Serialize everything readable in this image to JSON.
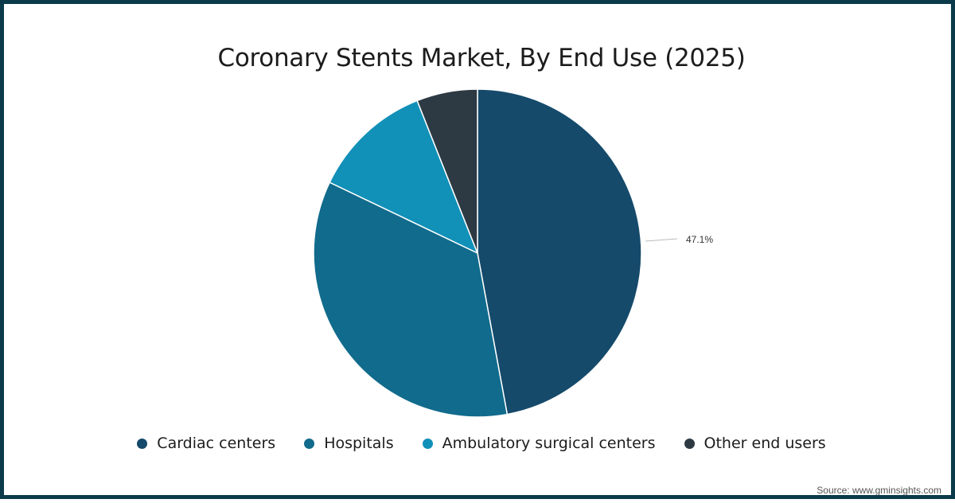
{
  "chart_data": {
    "type": "pie",
    "title": "Coronary Stents Market, By End Use (2025)",
    "categories": [
      "Cardiac centers",
      "Hospitals",
      "Ambulatory surgical centers",
      "Other end users"
    ],
    "values": [
      47.1,
      35.0,
      11.9,
      6.0
    ],
    "colors": [
      "#154a6b",
      "#116b8c",
      "#1190b8",
      "#2d3a44"
    ],
    "data_labels": [
      {
        "category": "Cardiac centers",
        "text": "47.1%"
      }
    ],
    "legend_position": "bottom",
    "start_angle_deg": 0,
    "direction": "clockwise"
  },
  "title": "Coronary Stents Market, By End Use (2025)",
  "legend": {
    "items": [
      {
        "label": "Cardiac centers",
        "color": "#154a6b"
      },
      {
        "label": "Hospitals",
        "color": "#116b8c"
      },
      {
        "label": "Ambulatory surgical centers",
        "color": "#1190b8"
      },
      {
        "label": "Other end users",
        "color": "#2d3a44"
      }
    ]
  },
  "data_label": "47.1%",
  "source": "Source: www.gminsights.com"
}
